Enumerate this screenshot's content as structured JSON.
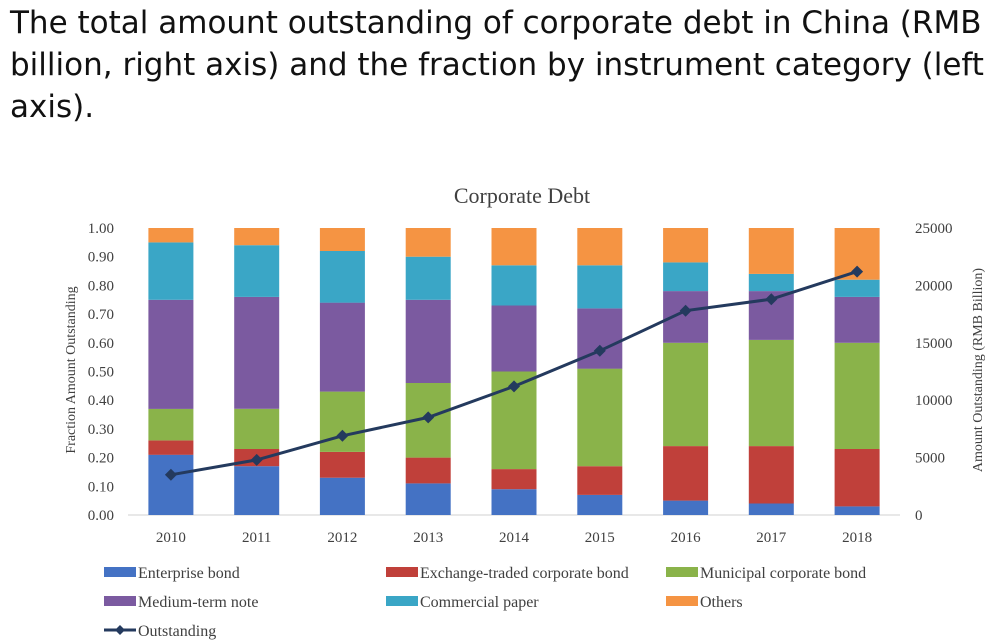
{
  "caption": "The total amount outstanding of corporate debt in China (RMB billion, right axis) and the fraction by instrument category (left axis).",
  "colors": {
    "enterprise": "#4472c4",
    "exchange": "#c0403a",
    "municipal": "#8ab34a",
    "mtn": "#7b5aa0",
    "cp": "#3aa6c6",
    "others": "#f59443",
    "line": "#243a5e"
  },
  "chart_data": {
    "type": "bar",
    "stacked": true,
    "title": "Corporate Debt",
    "ylabel": "Fraction Amount Outstanding",
    "y2label": "Amount Outstanding (RMB Billion)",
    "categories": [
      "2010",
      "2011",
      "2012",
      "2013",
      "2014",
      "2015",
      "2016",
      "2017",
      "2018"
    ],
    "ylim": [
      0,
      1
    ],
    "y2lim": [
      0,
      25000
    ],
    "yticks": [
      "0.00",
      "0.10",
      "0.20",
      "0.30",
      "0.40",
      "0.50",
      "0.60",
      "0.70",
      "0.80",
      "0.90",
      "1.00"
    ],
    "y2ticks": [
      "0",
      "5000",
      "10000",
      "15000",
      "20000",
      "25000"
    ],
    "legend_position": "bottom",
    "grid": false,
    "series": [
      {
        "name": "Enterprise bond",
        "key": "enterprise",
        "values": [
          0.21,
          0.17,
          0.13,
          0.11,
          0.09,
          0.07,
          0.05,
          0.04,
          0.03
        ]
      },
      {
        "name": "Exchange-traded corporate bond",
        "key": "exchange",
        "values": [
          0.05,
          0.06,
          0.09,
          0.09,
          0.07,
          0.1,
          0.19,
          0.2,
          0.2
        ]
      },
      {
        "name": "Municipal corporate bond",
        "key": "municipal",
        "values": [
          0.11,
          0.14,
          0.21,
          0.26,
          0.34,
          0.34,
          0.36,
          0.37,
          0.37
        ]
      },
      {
        "name": "Medium-term note",
        "key": "mtn",
        "values": [
          0.38,
          0.39,
          0.31,
          0.29,
          0.23,
          0.21,
          0.18,
          0.17,
          0.16
        ]
      },
      {
        "name": "Commercial paper",
        "key": "cp",
        "values": [
          0.2,
          0.18,
          0.18,
          0.15,
          0.14,
          0.15,
          0.1,
          0.06,
          0.06
        ]
      },
      {
        "name": "Others",
        "key": "others",
        "values": [
          0.05,
          0.06,
          0.08,
          0.1,
          0.13,
          0.13,
          0.12,
          0.16,
          0.18
        ]
      }
    ],
    "line_series": {
      "name": "Outstanding",
      "axis": "right",
      "values": [
        3500,
        4800,
        6900,
        8500,
        11200,
        14300,
        17800,
        18800,
        21200
      ]
    }
  }
}
